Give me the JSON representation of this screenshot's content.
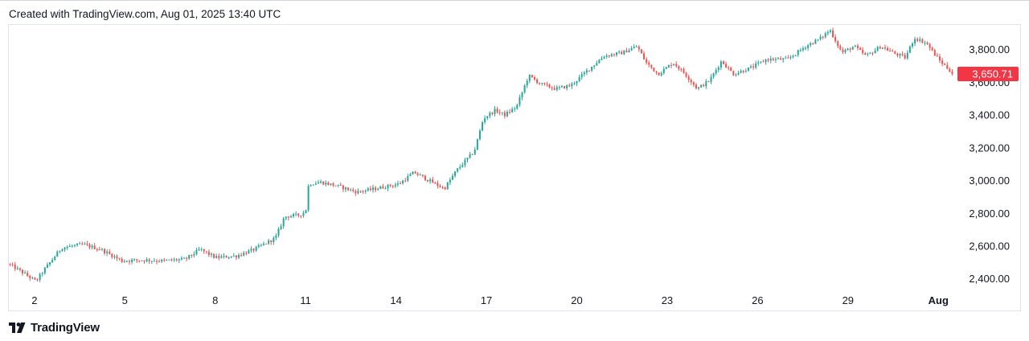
{
  "header": {
    "created_text": "Created with TradingView.com, Aug 01, 2025 13:40 UTC"
  },
  "footer": {
    "brand_text": "TradingView",
    "logo_icon": "tradingview-logo-icon"
  },
  "colors": {
    "up": "#26a69a",
    "down": "#ef5350",
    "price_label_bg": "#f23645",
    "axis_text": "#131722",
    "border": "#e0e3eb"
  },
  "chart_data": {
    "type": "candlestick",
    "title": "",
    "xlabel": "",
    "ylabel": "",
    "ylim": [
      2330,
      3950
    ],
    "y_ticks": [
      2400,
      2600,
      2800,
      3000,
      3200,
      3400,
      3600,
      3800
    ],
    "y_tick_labels": [
      "2,400.00",
      "2,600.00",
      "2,800.00",
      "3,000.00",
      "3,200.00",
      "3,400.00",
      "3,600.00",
      "3,800.00"
    ],
    "x_ticks": [
      "2",
      "5",
      "8",
      "11",
      "14",
      "17",
      "20",
      "23",
      "26",
      "29",
      "Aug"
    ],
    "x_tick_day": [
      2,
      5,
      8,
      11,
      14,
      17,
      20,
      23,
      26,
      29,
      32
    ],
    "x_range_days": [
      1.15,
      32.5
    ],
    "last_price": 3650.71,
    "last_price_label": "3,650.71",
    "price_path": [
      [
        1.15,
        2490
      ],
      [
        1.6,
        2440
      ],
      [
        2.05,
        2385
      ],
      [
        2.3,
        2450
      ],
      [
        2.9,
        2590
      ],
      [
        3.6,
        2610
      ],
      [
        4.2,
        2580
      ],
      [
        4.9,
        2510
      ],
      [
        5.6,
        2515
      ],
      [
        6.3,
        2510
      ],
      [
        7.0,
        2520
      ],
      [
        7.5,
        2580
      ],
      [
        8.0,
        2530
      ],
      [
        8.7,
        2540
      ],
      [
        9.3,
        2580
      ],
      [
        10.0,
        2650
      ],
      [
        10.3,
        2780
      ],
      [
        10.8,
        2790
      ],
      [
        11.0,
        2810
      ],
      [
        11.1,
        2980
      ],
      [
        11.5,
        2990
      ],
      [
        12.0,
        2970
      ],
      [
        12.7,
        2930
      ],
      [
        13.3,
        2950
      ],
      [
        14.1,
        2980
      ],
      [
        14.6,
        3050
      ],
      [
        15.2,
        2990
      ],
      [
        15.6,
        2950
      ],
      [
        16.0,
        3060
      ],
      [
        16.6,
        3180
      ],
      [
        16.9,
        3380
      ],
      [
        17.3,
        3430
      ],
      [
        17.6,
        3400
      ],
      [
        18.0,
        3450
      ],
      [
        18.4,
        3640
      ],
      [
        18.8,
        3590
      ],
      [
        19.3,
        3560
      ],
      [
        19.8,
        3580
      ],
      [
        20.4,
        3680
      ],
      [
        20.9,
        3760
      ],
      [
        21.5,
        3780
      ],
      [
        22.0,
        3820
      ],
      [
        22.3,
        3720
      ],
      [
        22.7,
        3650
      ],
      [
        23.2,
        3720
      ],
      [
        23.6,
        3650
      ],
      [
        24.0,
        3560
      ],
      [
        24.4,
        3610
      ],
      [
        24.8,
        3730
      ],
      [
        25.2,
        3650
      ],
      [
        25.8,
        3690
      ],
      [
        26.3,
        3740
      ],
      [
        27.0,
        3740
      ],
      [
        27.6,
        3820
      ],
      [
        28.1,
        3870
      ],
      [
        28.4,
        3920
      ],
      [
        28.8,
        3780
      ],
      [
        29.2,
        3820
      ],
      [
        29.6,
        3760
      ],
      [
        30.1,
        3820
      ],
      [
        30.5,
        3780
      ],
      [
        30.9,
        3750
      ],
      [
        31.2,
        3870
      ],
      [
        31.6,
        3840
      ],
      [
        32.0,
        3740
      ],
      [
        32.5,
        3650.71
      ]
    ]
  }
}
